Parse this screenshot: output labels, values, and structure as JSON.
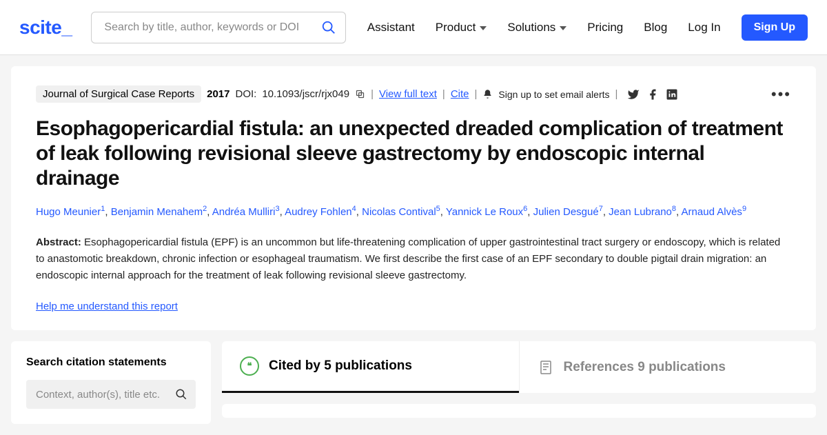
{
  "header": {
    "logo": "scite",
    "search_placeholder": "Search by title, author, keywords or DOI",
    "nav": {
      "assistant": "Assistant",
      "product": "Product",
      "solutions": "Solutions",
      "pricing": "Pricing",
      "blog": "Blog",
      "login": "Log In",
      "signup": "Sign Up"
    }
  },
  "paper": {
    "journal": "Journal of Surgical Case Reports",
    "year": "2017",
    "doi_label": "DOI:",
    "doi": "10.1093/jscr/rjx049",
    "view_full_text": "View full text",
    "cite": "Cite",
    "alert": "Sign up to set email alerts",
    "title": "Esophagopericardial fistula: an unexpected dreaded complication of treatment of leak following revisional sleeve gastrectomy by endoscopic internal drainage",
    "authors": [
      {
        "name": "Hugo Meunier",
        "aff": "1"
      },
      {
        "name": "Benjamin Menahem",
        "aff": "2"
      },
      {
        "name": "Andréa Mulliri",
        "aff": "3"
      },
      {
        "name": "Audrey Fohlen",
        "aff": "4"
      },
      {
        "name": "Nicolas Contival",
        "aff": "5"
      },
      {
        "name": "Yannick Le Roux",
        "aff": "6"
      },
      {
        "name": "Julien Desgué",
        "aff": "7"
      },
      {
        "name": "Jean Lubrano",
        "aff": "8"
      },
      {
        "name": "Arnaud Alvès",
        "aff": "9"
      }
    ],
    "abstract_label": "Abstract:",
    "abstract": "Esophagopericardial fistula (EPF) is an uncommon but life-threatening complication of upper gastrointestinal tract surgery or endoscopy, which is related to anastomotic breakdown, chronic infection or esophageal traumatism. We first describe the first case of an EPF secondary to double pigtail drain migration: an endoscopic internal approach for the treatment of leak following revisional sleeve gastrectomy.",
    "help_link": "Help me understand this report"
  },
  "sidebar": {
    "title": "Search citation statements",
    "placeholder": "Context, author(s), title etc."
  },
  "tabs": {
    "cited": "Cited by 5 publications",
    "references": "References 9 publications"
  },
  "colors": {
    "primary": "#2459ff",
    "accent_green": "#4caf50",
    "bg": "#f5f5f5",
    "text": "#111111",
    "muted": "#888888"
  }
}
